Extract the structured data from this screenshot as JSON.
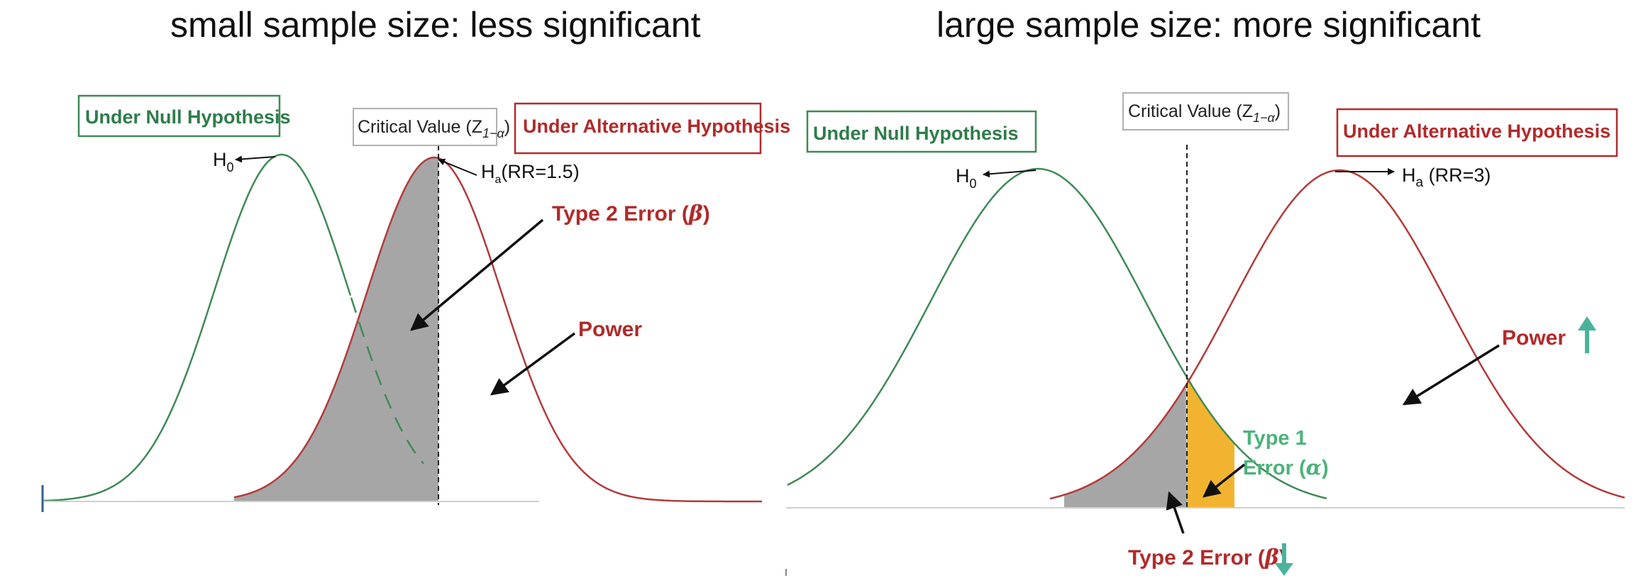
{
  "left": {
    "title": "small sample size: less significant",
    "null_label": "Under Null Hypothesis",
    "alt_label": "Under Alternative Hypothesis",
    "critical_label": "Critical Value (Z",
    "critical_sub": "1−α",
    "critical_close": ")",
    "h0_main": "H",
    "h0_sub": "0",
    "ha_main": "H",
    "ha_sub": "a",
    "ha_rest": "(RR=1.5)",
    "type2_label": "Type 2 Error (",
    "type2_sym": "β",
    "type2_close": ")",
    "power_label": "Power"
  },
  "right": {
    "title": "large sample size: more significant",
    "null_label": "Under Null Hypothesis",
    "alt_label": "Under Alternative Hypothesis",
    "critical_label": "Critical Value (Z",
    "critical_sub": "1−α",
    "critical_close": ")",
    "h0_main": "H",
    "h0_sub": "0",
    "ha_main": "H",
    "ha_sub": "a",
    "ha_rest": " (RR=3)",
    "type1_line1": "Type 1",
    "type1_line2": "Error (",
    "type1_sym": "α",
    "type1_close": ")",
    "type2_label": "Type 2 Error (",
    "type2_sym": "β",
    "type2_close": ")",
    "power_label": "Power"
  },
  "colors": {
    "null_curve": "#3f8a55",
    "alt_curve": "#b23b3b",
    "beta_fill": "#a6a6a6",
    "alpha_fill": "#f2b430",
    "arrow_up": "#4bb39a",
    "arrow_down": "#4bb39a"
  }
}
